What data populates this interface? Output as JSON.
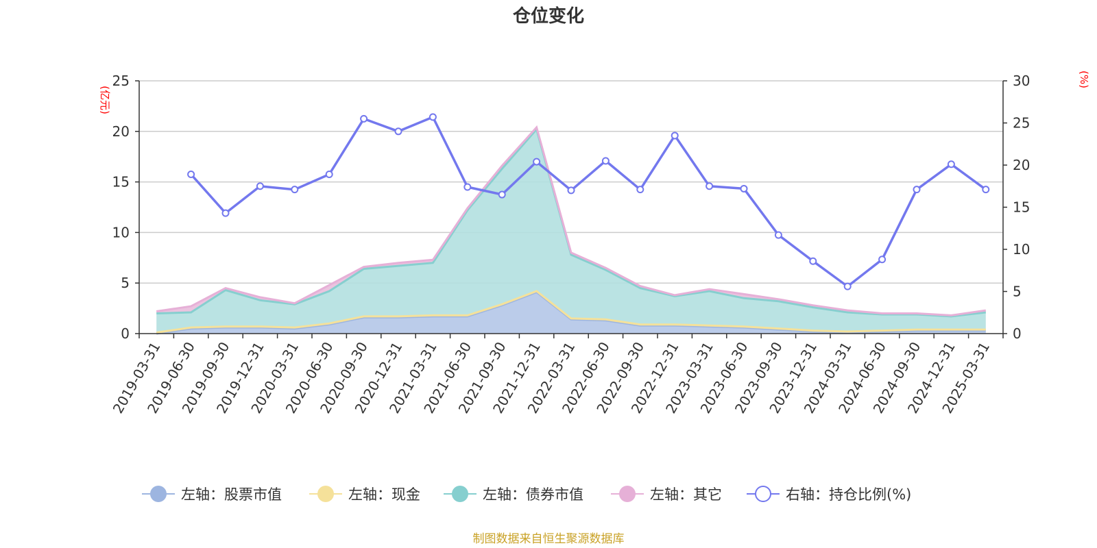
{
  "chart_data": {
    "type": "area",
    "title": "仓位变化",
    "left_axis": {
      "unit": "(亿元)",
      "ylim": [
        0,
        25
      ],
      "ticks": [
        0,
        5,
        10,
        15,
        20,
        25
      ]
    },
    "right_axis": {
      "unit": "(%)",
      "ylim": [
        0,
        30
      ],
      "ticks": [
        0,
        5,
        10,
        15,
        20,
        25,
        30
      ]
    },
    "categories": [
      "2019-03-31",
      "2019-06-30",
      "2019-09-30",
      "2019-12-31",
      "2020-03-31",
      "2020-06-30",
      "2020-09-30",
      "2020-12-31",
      "2021-03-31",
      "2021-06-30",
      "2021-09-30",
      "2021-12-31",
      "2022-03-31",
      "2022-06-30",
      "2022-09-30",
      "2022-12-31",
      "2023-03-31",
      "2023-06-30",
      "2023-09-30",
      "2023-12-31",
      "2024-03-31",
      "2024-06-30",
      "2024-09-30",
      "2024-12-31",
      "2025-03-31"
    ],
    "stacked_series": [
      {
        "name": "左轴：股票市值",
        "axis": "left",
        "color": "#9db5e0",
        "fill": "#b4c6e8",
        "values": [
          0.0,
          0.5,
          0.6,
          0.6,
          0.5,
          0.9,
          1.6,
          1.6,
          1.7,
          1.7,
          2.8,
          4.1,
          1.4,
          1.3,
          0.8,
          0.8,
          0.7,
          0.6,
          0.4,
          0.2,
          0.1,
          0.2,
          0.3,
          0.3,
          0.3
        ]
      },
      {
        "name": "左轴：现金",
        "axis": "left",
        "color": "#f5e19a",
        "fill": "#f6e6a8",
        "values": [
          0.1,
          0.1,
          0.1,
          0.1,
          0.1,
          0.1,
          0.1,
          0.1,
          0.1,
          0.1,
          0.1,
          0.1,
          0.1,
          0.1,
          0.1,
          0.1,
          0.1,
          0.1,
          0.1,
          0.1,
          0.1,
          0.1,
          0.1,
          0.1,
          0.1
        ]
      },
      {
        "name": "左轴：债券市值",
        "axis": "left",
        "color": "#86cfcf",
        "fill": "#b3e0e0",
        "values": [
          1.9,
          1.5,
          3.6,
          2.6,
          2.3,
          3.2,
          4.7,
          5.0,
          5.2,
          10.4,
          13.4,
          16.0,
          6.3,
          4.9,
          3.6,
          2.8,
          3.4,
          2.8,
          2.7,
          2.3,
          1.9,
          1.6,
          1.5,
          1.3,
          1.7
        ]
      },
      {
        "name": "左轴：其它",
        "axis": "left",
        "color": "#e6b0d7",
        "fill": "#e9bcdc",
        "values": [
          0.2,
          0.6,
          0.2,
          0.3,
          0.1,
          0.6,
          0.2,
          0.3,
          0.3,
          0.2,
          0.3,
          0.2,
          0.2,
          0.2,
          0.2,
          0.1,
          0.2,
          0.4,
          0.2,
          0.2,
          0.2,
          0.1,
          0.1,
          0.1,
          0.2
        ]
      }
    ],
    "line_series": {
      "name": "右轴：持仓比例(%)",
      "axis": "right",
      "color": "#7378ee",
      "start_index": 1,
      "values": [
        18.9,
        14.3,
        17.5,
        17.1,
        18.9,
        25.5,
        24.0,
        25.7,
        17.4,
        16.5,
        20.4,
        17.0,
        20.5,
        17.1,
        23.5,
        17.5,
        17.2,
        11.7,
        8.6,
        5.6,
        8.8,
        17.1,
        20.1,
        17.1
      ]
    },
    "grid": true,
    "legend_position": "bottom",
    "source": "制图数据来自恒生聚源数据库"
  }
}
